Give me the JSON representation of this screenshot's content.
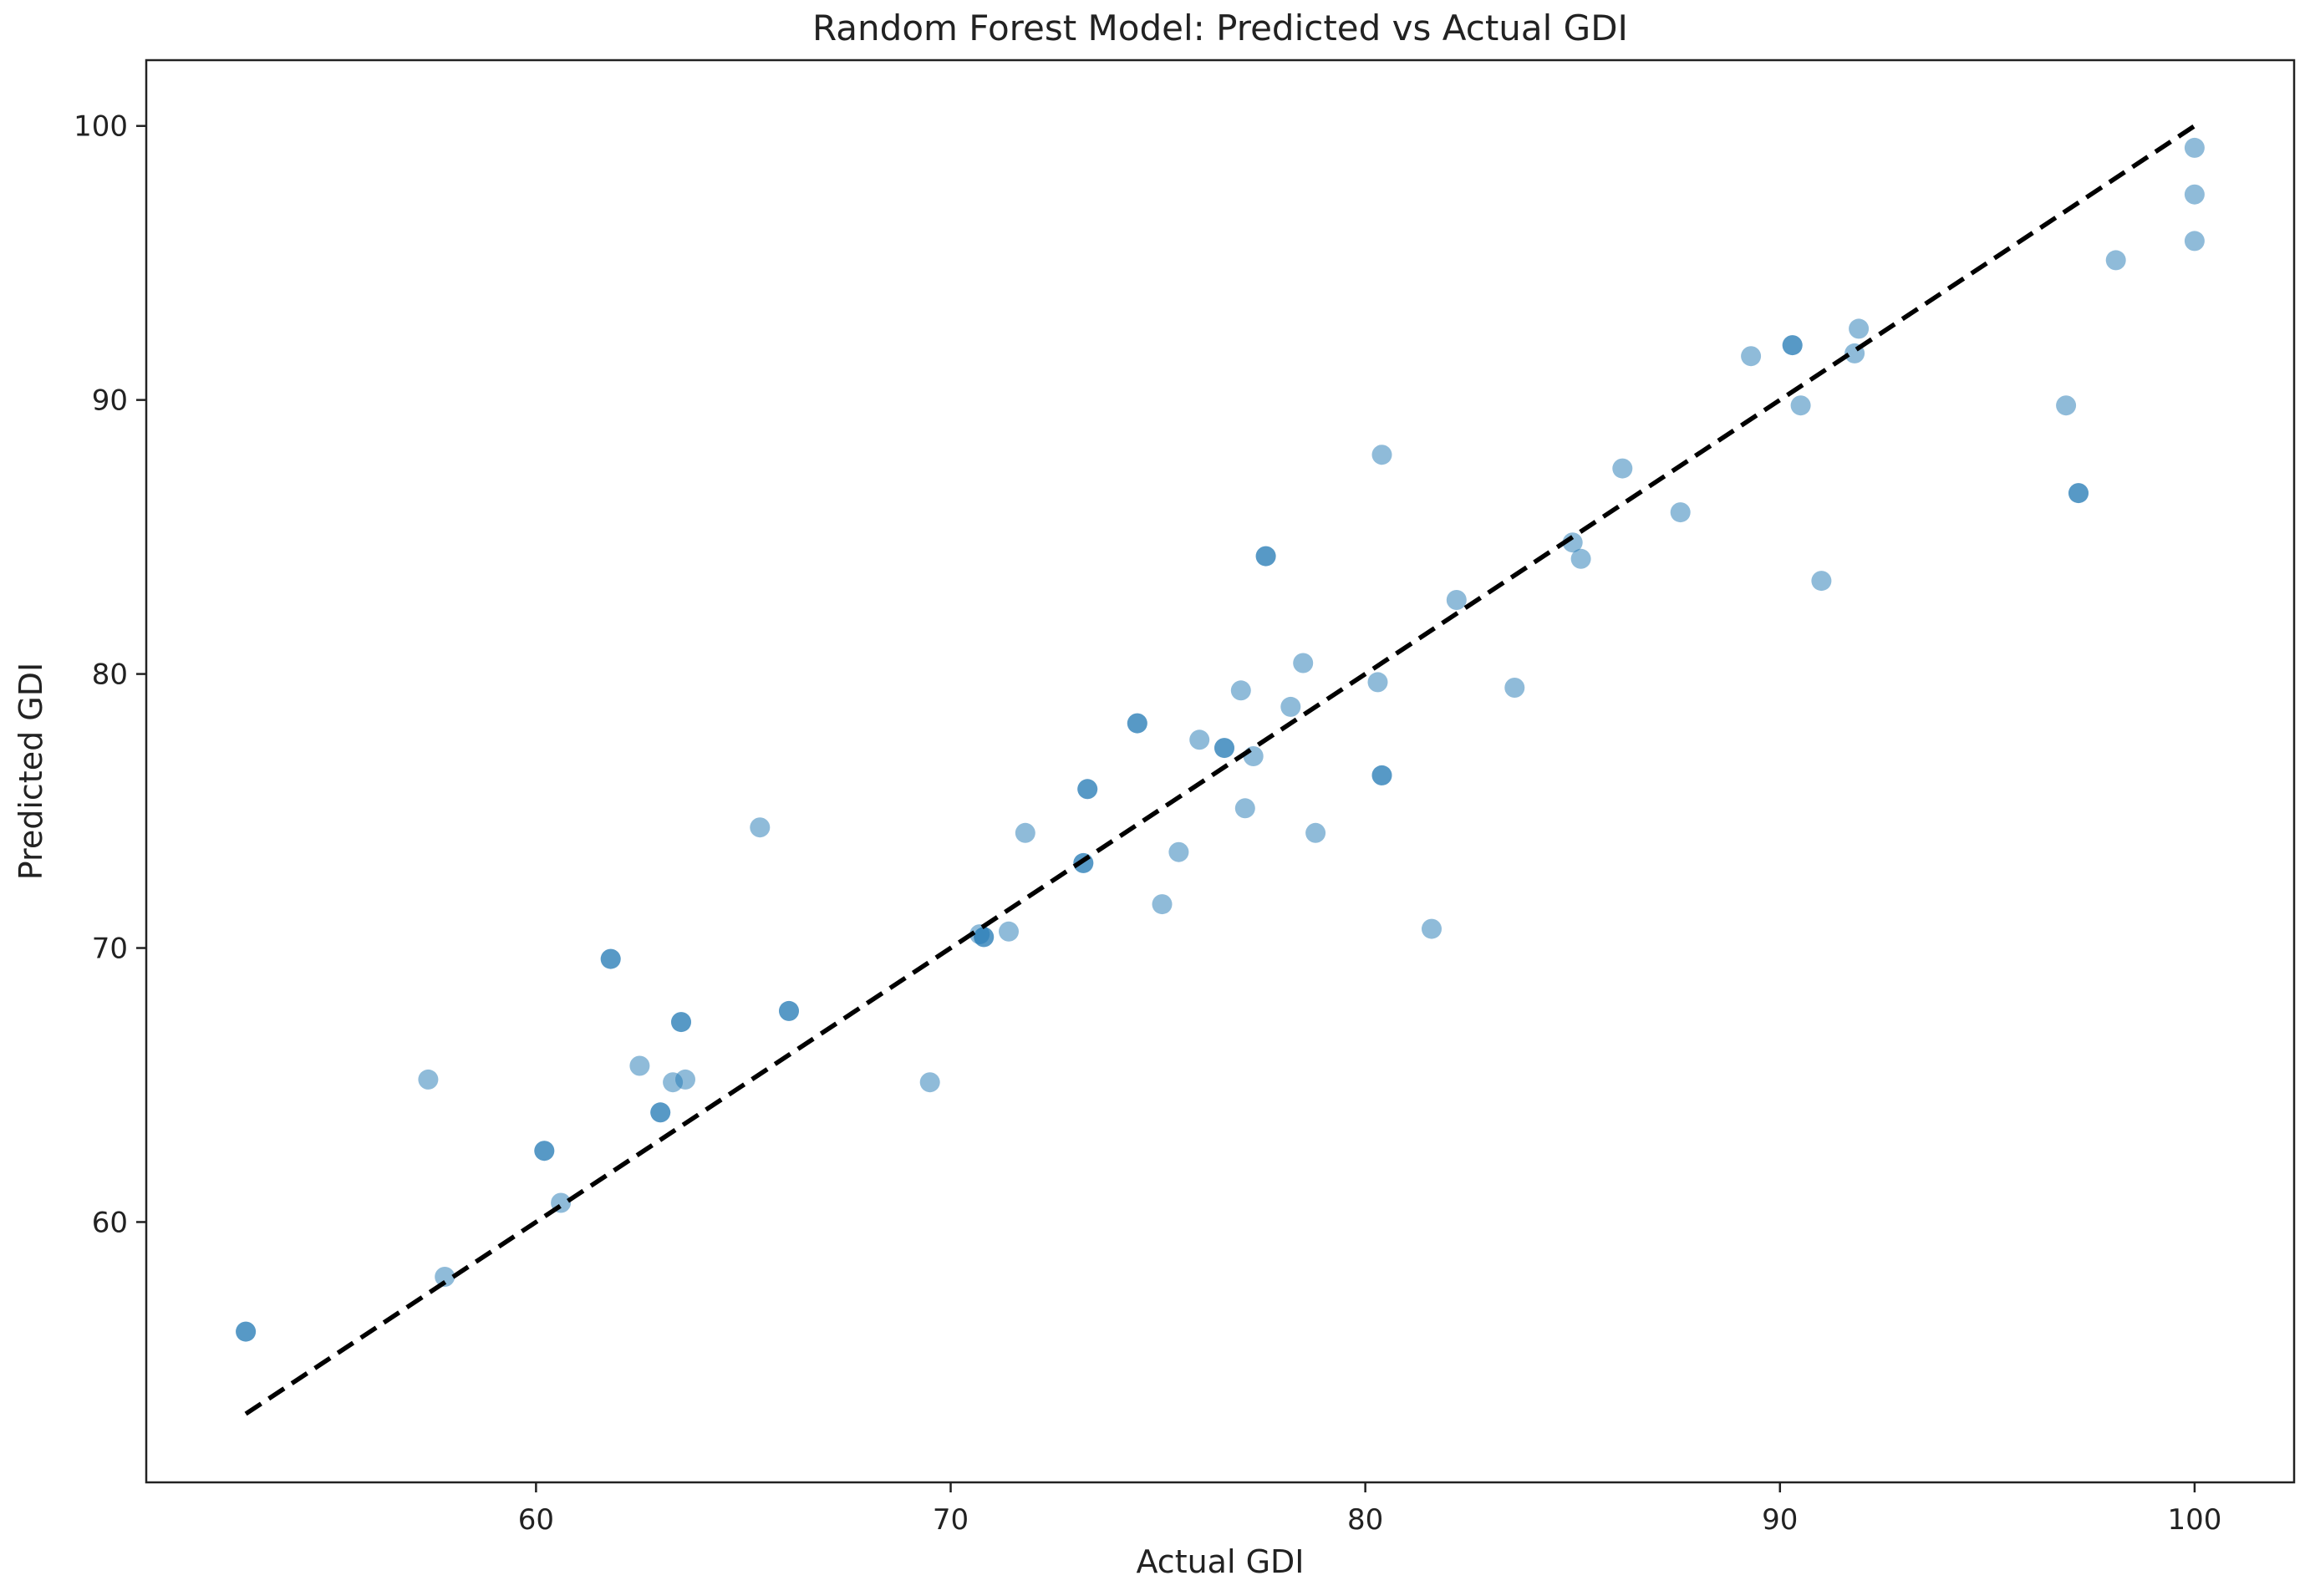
{
  "chart_data": {
    "type": "scatter",
    "title": "Random Forest Model: Predicted vs Actual GDI",
    "xlabel": "Actual GDI",
    "ylabel": "Predicted GDI",
    "xlim": [
      50.6,
      102.4
    ],
    "ylim": [
      50.5,
      102.4
    ],
    "xticks": [
      60,
      70,
      80,
      90,
      100
    ],
    "yticks": [
      60,
      70,
      80,
      90,
      100
    ],
    "grid": false,
    "legend": "none",
    "marker_color": "#1f77b4",
    "reference_line": {
      "from": [
        53,
        53
      ],
      "to": [
        100,
        100
      ],
      "style": "dashed",
      "color": "#000000"
    },
    "series": [
      {
        "points": [
          [
            53.0,
            56.0
          ],
          [
            53.0,
            56.0
          ],
          [
            57.4,
            65.2
          ],
          [
            57.8,
            58.0
          ],
          [
            60.2,
            62.6
          ],
          [
            60.2,
            62.6
          ],
          [
            60.6,
            60.7
          ],
          [
            61.8,
            69.6
          ],
          [
            61.8,
            69.6
          ],
          [
            62.5,
            65.7
          ],
          [
            63.0,
            64.0
          ],
          [
            63.0,
            64.0
          ],
          [
            63.3,
            65.1
          ],
          [
            63.5,
            67.3
          ],
          [
            63.5,
            67.3
          ],
          [
            63.6,
            65.2
          ],
          [
            65.4,
            74.4
          ],
          [
            66.1,
            67.7
          ],
          [
            66.1,
            67.7
          ],
          [
            69.5,
            65.1
          ],
          [
            70.7,
            70.5
          ],
          [
            70.8,
            70.4
          ],
          [
            70.8,
            70.4
          ],
          [
            71.4,
            70.6
          ],
          [
            71.8,
            74.2
          ],
          [
            73.2,
            73.1
          ],
          [
            73.2,
            73.1
          ],
          [
            73.3,
            75.8
          ],
          [
            73.3,
            75.8
          ],
          [
            74.5,
            78.2
          ],
          [
            74.5,
            78.2
          ],
          [
            75.1,
            71.6
          ],
          [
            75.5,
            73.5
          ],
          [
            76.0,
            77.6
          ],
          [
            76.6,
            77.3
          ],
          [
            76.6,
            77.3
          ],
          [
            77.0,
            79.4
          ],
          [
            77.1,
            75.1
          ],
          [
            77.3,
            77.0
          ],
          [
            77.6,
            84.3
          ],
          [
            77.6,
            84.3
          ],
          [
            78.2,
            78.8
          ],
          [
            78.5,
            80.4
          ],
          [
            78.8,
            74.2
          ],
          [
            80.3,
            79.7
          ],
          [
            80.4,
            88.0
          ],
          [
            80.4,
            76.3
          ],
          [
            80.4,
            76.3
          ],
          [
            81.6,
            70.7
          ],
          [
            82.2,
            82.7
          ],
          [
            83.6,
            79.5
          ],
          [
            85.0,
            84.8
          ],
          [
            85.2,
            84.2
          ],
          [
            86.2,
            87.5
          ],
          [
            87.6,
            85.9
          ],
          [
            89.3,
            91.6
          ],
          [
            90.3,
            92.0
          ],
          [
            90.3,
            92.0
          ],
          [
            90.5,
            89.8
          ],
          [
            91.0,
            83.4
          ],
          [
            91.8,
            91.7
          ],
          [
            91.9,
            92.6
          ],
          [
            96.9,
            89.8
          ],
          [
            97.2,
            86.6
          ],
          [
            97.2,
            86.6
          ],
          [
            98.1,
            95.1
          ],
          [
            100.0,
            99.2
          ],
          [
            100.0,
            97.5
          ],
          [
            100.0,
            95.8
          ]
        ]
      }
    ]
  }
}
